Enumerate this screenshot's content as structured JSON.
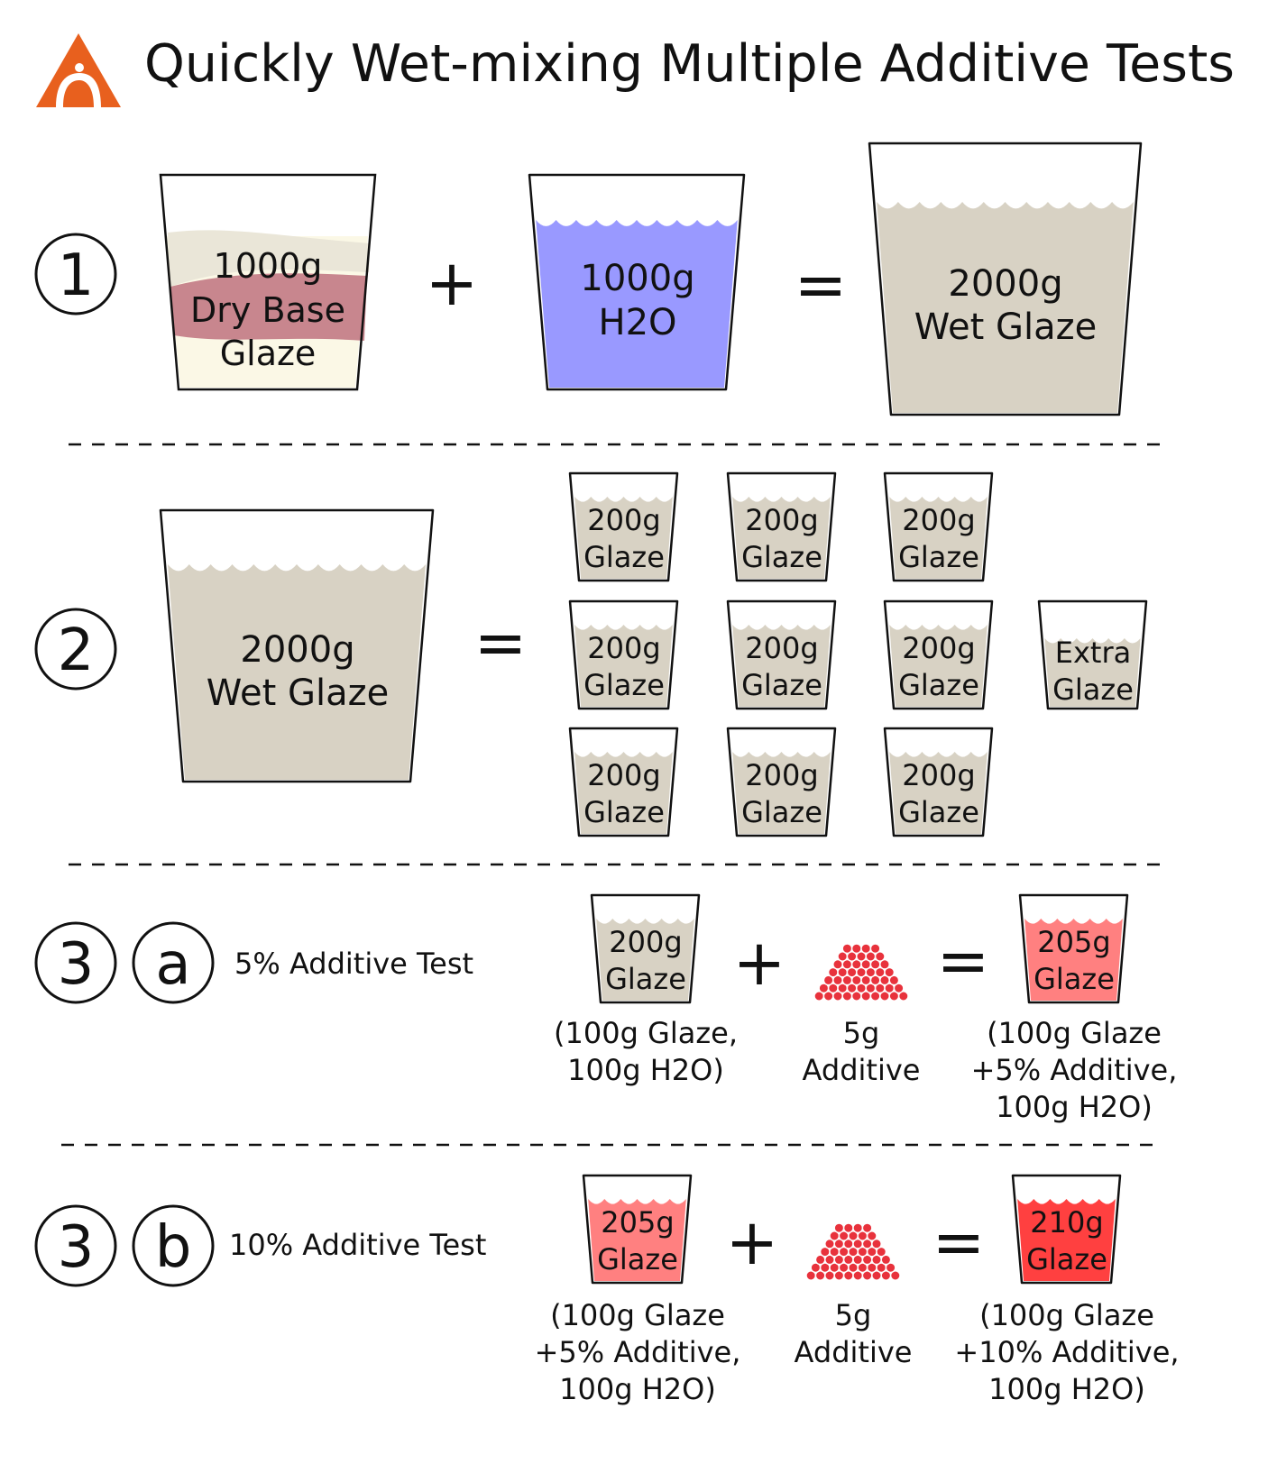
{
  "title": "Quickly Wet-mixing Multiple Additive Tests",
  "colors": {
    "dry_glaze_cream": "#fbf8e6",
    "dry_glaze_band_light": "#eae6d8",
    "dry_glaze_band_rose": "#c8868e",
    "water_blue": "#9999ff",
    "wet_glaze_tan": "#d8d2c4",
    "glaze_5pct": "#ff8080",
    "glaze_10pct": "#ff4040",
    "additive_red": "#e8323c",
    "logo_orange": "#e8601e"
  },
  "step1": {
    "marker": "1",
    "dry": {
      "line1": "1000g",
      "line2": "Dry Base",
      "line3": "Glaze"
    },
    "plus": "+",
    "water": {
      "line1": "1000g",
      "line2": "H2O"
    },
    "equals": "=",
    "wet": {
      "line1": "2000g",
      "line2": "Wet Glaze"
    }
  },
  "step2": {
    "marker": "2",
    "wet": {
      "line1": "2000g",
      "line2": "Wet Glaze"
    },
    "equals": "=",
    "cup_line1": "200g",
    "cup_line2": "Glaze",
    "extra": {
      "line1": "Extra",
      "line2": "Glaze"
    }
  },
  "step3a": {
    "marker": "3",
    "sub_marker": "a",
    "label": "5% Additive Test",
    "base": {
      "line1": "200g",
      "line2": "Glaze",
      "cap1": "(100g Glaze,",
      "cap2": "100g H2O)"
    },
    "plus": "+",
    "additive": {
      "cap1": "5g",
      "cap2": "Additive"
    },
    "equals": "=",
    "result": {
      "line1": "205g",
      "line2": "Glaze",
      "cap1": "(100g Glaze",
      "cap2": "+5% Additive,",
      "cap3": "100g H2O)"
    }
  },
  "step3b": {
    "marker": "3",
    "sub_marker": "b",
    "label": "10% Additive Test",
    "base": {
      "line1": "205g",
      "line2": "Glaze",
      "cap1": "(100g Glaze",
      "cap2": "+5% Additive,",
      "cap3": "100g H2O)"
    },
    "plus": "+",
    "additive": {
      "cap1": "5g",
      "cap2": "Additive"
    },
    "equals": "=",
    "result": {
      "line1": "210g",
      "line2": "Glaze",
      "cap1": "(100g Glaze",
      "cap2": "+10% Additive,",
      "cap3": "100g H2O)"
    }
  }
}
